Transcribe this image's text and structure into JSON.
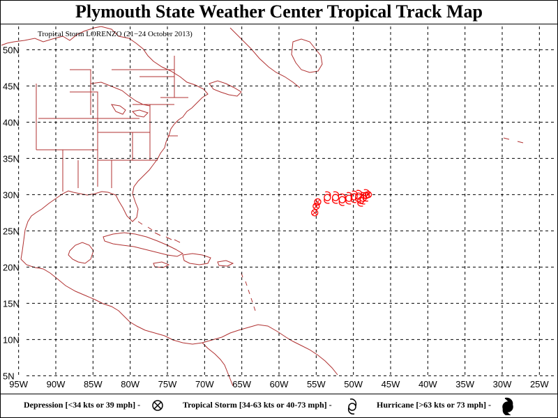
{
  "title": "Plymouth State Weather Center Tropical Track Map",
  "subtitle": "Tropical Storm LORENZO (21−24 October 2013)",
  "map": {
    "lon_range": [
      -97.5,
      -22.5
    ],
    "lat_range": [
      3.5,
      53.5
    ],
    "grid_lon": [
      -95,
      -90,
      -85,
      -80,
      -75,
      -70,
      -65,
      -60,
      -55,
      -50,
      -45,
      -40,
      -35,
      -30,
      -25
    ],
    "grid_lat": [
      5,
      10,
      15,
      20,
      25,
      30,
      35,
      40,
      45,
      50
    ],
    "lon_labels": [
      "95W",
      "90W",
      "85W",
      "80W",
      "75W",
      "70W",
      "65W",
      "60W",
      "55W",
      "50W",
      "45W",
      "40W",
      "35W",
      "30W",
      "25W"
    ],
    "lat_labels": [
      "5N",
      "10N",
      "15N",
      "20N",
      "25N",
      "30N",
      "35N",
      "40N",
      "45N",
      "50N"
    ],
    "coast_color": "#b03030",
    "grid_color": "#000000"
  },
  "track": {
    "color": "#ff0000",
    "points": [
      {
        "lon": -55.2,
        "lat": 27.5,
        "type": "depression"
      },
      {
        "lon": -55.0,
        "lat": 28.4,
        "type": "depression"
      },
      {
        "lon": -54.8,
        "lat": 29.0,
        "type": "depression"
      },
      {
        "lon": -53.5,
        "lat": 29.6,
        "type": "tropical_storm"
      },
      {
        "lon": -52.4,
        "lat": 29.6,
        "type": "tropical_storm"
      },
      {
        "lon": -51.5,
        "lat": 29.3,
        "type": "tropical_storm"
      },
      {
        "lon": -50.6,
        "lat": 29.5,
        "type": "tropical_storm"
      },
      {
        "lon": -49.9,
        "lat": 29.7,
        "type": "tropical_storm"
      },
      {
        "lon": -49.3,
        "lat": 29.8,
        "type": "tropical_storm"
      },
      {
        "lon": -49.0,
        "lat": 29.2,
        "type": "tropical_storm"
      },
      {
        "lon": -48.7,
        "lat": 29.5,
        "type": "tropical_storm"
      },
      {
        "lon": -48.3,
        "lat": 29.9,
        "type": "tropical_storm"
      },
      {
        "lon": -48.0,
        "lat": 30.0,
        "type": "depression"
      }
    ]
  },
  "legend": {
    "depression": "Depression [<34 kts or 39 mph] -",
    "tropical_storm": "Tropical Storm [34-63 kts or 40-73 mph] -",
    "hurricane": "Hurricane [>63 kts or 73 mph] -"
  }
}
